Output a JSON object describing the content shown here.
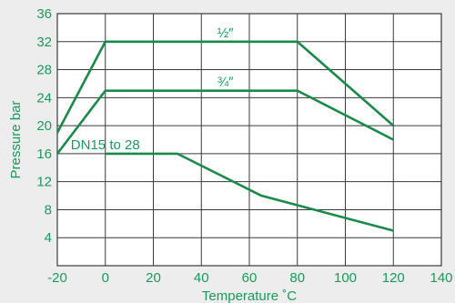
{
  "chart_data": {
    "type": "line",
    "xlabel": "Temperature ˚C",
    "ylabel": "Pressure bar",
    "xlim": [
      -20,
      140
    ],
    "ylim": [
      0,
      36
    ],
    "xticks": [
      -20,
      0,
      20,
      40,
      60,
      80,
      100,
      120,
      140
    ],
    "yticks": [
      4,
      8,
      12,
      16,
      20,
      24,
      28,
      32,
      36
    ],
    "grid": true,
    "colors": {
      "background": "#ededed",
      "plot_background": "#ffffff",
      "line": "#1a8a4a",
      "text": "#1a9a5a",
      "grid": "#3a3a3a"
    },
    "series": [
      {
        "name": "½″",
        "x": [
          -20,
          0,
          80,
          120
        ],
        "y": [
          19,
          32,
          32,
          20
        ],
        "label_at": [
          50,
          32
        ]
      },
      {
        "name": "¾″",
        "x": [
          -20,
          0,
          80,
          120
        ],
        "y": [
          16,
          25,
          25,
          18
        ],
        "label_at": [
          50,
          25
        ]
      },
      {
        "name": "DN15 to 28",
        "x": [
          0,
          30,
          65,
          120
        ],
        "y": [
          16,
          16,
          10,
          5
        ],
        "label_at": [
          0,
          16
        ]
      }
    ]
  }
}
